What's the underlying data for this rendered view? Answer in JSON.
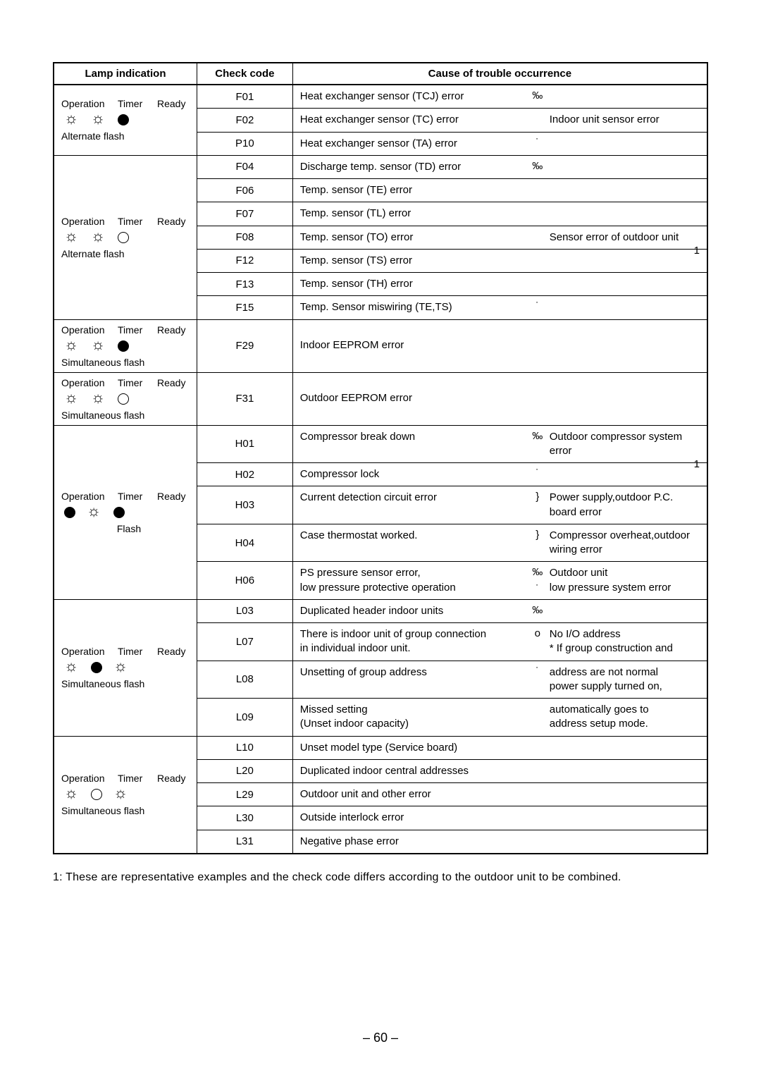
{
  "headers": {
    "lamp": "Lamp indication",
    "code": "Check code",
    "cause": "Cause of trouble occurrence"
  },
  "lamp_labels": {
    "op": "Operation",
    "timer": "Timer",
    "ready": "Ready"
  },
  "flash_labels": {
    "alternate": "Alternate flash",
    "simultaneous": "Simultaneous flash",
    "flash": "Flash"
  },
  "groups": [
    {
      "lamp": {
        "icons": [
          "sun",
          "sun",
          "filled"
        ],
        "flash": "alternate"
      },
      "rows": [
        {
          "code": "F01",
          "cause_left": "Heat exchanger sensor (TCJ) error",
          "right_sym": "‰"
        },
        {
          "code": "F02",
          "cause_left": "Heat exchanger sensor (TC) error",
          "cause_right": "Indoor unit sensor error"
        },
        {
          "code": "P10",
          "cause_left": "Heat exchanger sensor (TA) error",
          "right_sym": "˙"
        }
      ]
    },
    {
      "lamp": {
        "icons": [
          "sun",
          "sun",
          "open"
        ],
        "flash": "alternate"
      },
      "rows": [
        {
          "code": "F04",
          "cause_left": "Discharge temp. sensor (TD) error",
          "right_sym": "‰"
        },
        {
          "code": "F06",
          "cause_left": "Temp. sensor (TE) error"
        },
        {
          "code": "F07",
          "cause_left": "Temp. sensor (TL) error"
        },
        {
          "code": "F08",
          "cause_left": "Temp. sensor (TO) error",
          "cause_right": "Sensor error of outdoor unit",
          "ast": "1"
        },
        {
          "code": "F12",
          "cause_left": "Temp. sensor (TS) error"
        },
        {
          "code": "F13",
          "cause_left": "Temp. sensor (TH) error"
        },
        {
          "code": "F15",
          "cause_left": "Temp. Sensor miswiring (TE,TS)",
          "right_sym": "˙"
        }
      ]
    },
    {
      "lamp": {
        "icons": [
          "sun",
          "sun",
          "filled"
        ],
        "flash": "simultaneous"
      },
      "rows": [
        {
          "code": "F29",
          "cause_left": "Indoor EEPROM error"
        }
      ]
    },
    {
      "lamp": {
        "icons": [
          "sun",
          "sun",
          "open"
        ],
        "flash": "simultaneous"
      },
      "rows": [
        {
          "code": "F31",
          "cause_left": "Outdoor EEPROM error"
        }
      ]
    },
    {
      "lamp": {
        "icons": [
          "filled",
          "sun",
          "filled"
        ],
        "flash": "flash",
        "center_flash": true
      },
      "rows": [
        {
          "code": "H01",
          "cause_left": "Compressor break down",
          "right_sym": "‰",
          "cause_right": "Outdoor compressor system error",
          "ast": "1"
        },
        {
          "code": "H02",
          "cause_left": "Compressor lock",
          "right_sym": "˙"
        },
        {
          "code": "H03",
          "cause_left": "Current detection circuit error",
          "right_sym": "}",
          "cause_right": "Power supply,outdoor P.C. board error"
        },
        {
          "code": "H04",
          "cause_left": "Case thermostat worked.",
          "right_sym": "}",
          "cause_right": "Compressor overheat,outdoor wiring error"
        },
        {
          "code": "H06",
          "cause_left": "PS pressure sensor error,\nlow pressure protective operation",
          "right_sym_top": "‰",
          "right_sym_bot": "˙",
          "cause_right": "Outdoor unit\nlow pressure system error"
        }
      ]
    },
    {
      "lamp": {
        "icons": [
          "sun",
          "filled",
          "sun"
        ],
        "flash": "simultaneous"
      },
      "rows": [
        {
          "code": "L03",
          "cause_left": "Duplicated header indoor units",
          "right_sym": "‰"
        },
        {
          "code": "L07",
          "cause_left": "There is indoor unit of group connection\nin individual indoor unit.",
          "right_sym": "o",
          "cause_right": "No I/O address\n* If group construction and"
        },
        {
          "code": "L08",
          "cause_left": "Unsetting of group address",
          "right_sym": "˙",
          "cause_right": "address are not normal\npower supply turned on,"
        },
        {
          "code": "L09",
          "cause_left": "Missed setting\n(Unset indoor capacity)",
          "cause_right": "automatically goes to\naddress setup mode."
        }
      ]
    },
    {
      "lamp": {
        "icons": [
          "sun",
          "open",
          "sun"
        ],
        "flash": "simultaneous"
      },
      "rows": [
        {
          "code": "L10",
          "cause_left": "Unset model type (Service board)"
        },
        {
          "code": "L20",
          "cause_left": "Duplicated indoor central addresses"
        },
        {
          "code": "L29",
          "cause_left": "Outdoor unit and other error"
        },
        {
          "code": "L30",
          "cause_left": "Outside interlock error"
        },
        {
          "code": "L31",
          "cause_left": "Negative phase error"
        }
      ]
    }
  ],
  "footnote": "1: These are representative examples and the check code differs according to the outdoor unit to be combined.",
  "page_number": "– 60 –"
}
